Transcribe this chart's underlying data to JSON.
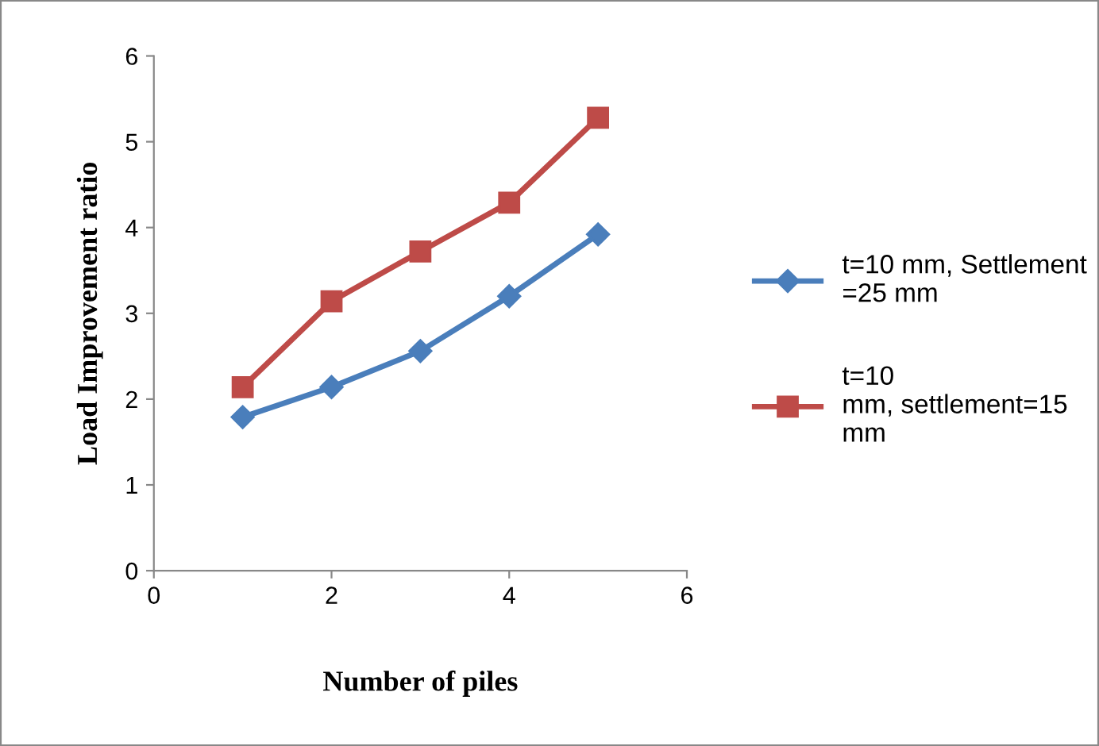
{
  "chart_data": {
    "type": "line",
    "xlabel": "Number of piles",
    "ylabel": "Load Improvement ratio",
    "x": [
      1,
      2,
      3,
      4,
      5
    ],
    "series": [
      {
        "name": "t=10 mm, Settlement\n=25 mm",
        "color": "#4a7ebb",
        "marker": "diamond",
        "values": [
          1.79,
          2.14,
          2.56,
          3.2,
          3.92
        ]
      },
      {
        "name": "t=10\nmm, settlement=15\nmm",
        "color": "#be4b48",
        "marker": "square",
        "values": [
          2.14,
          3.14,
          3.72,
          4.29,
          5.28
        ]
      }
    ],
    "xlim": [
      0,
      6
    ],
    "xticks": [
      0,
      2,
      4,
      6
    ],
    "ylim": [
      0,
      6
    ],
    "yticks": [
      0,
      1,
      2,
      3,
      4,
      5,
      6
    ],
    "grid": false,
    "legend": "right",
    "line_style": "solid"
  }
}
